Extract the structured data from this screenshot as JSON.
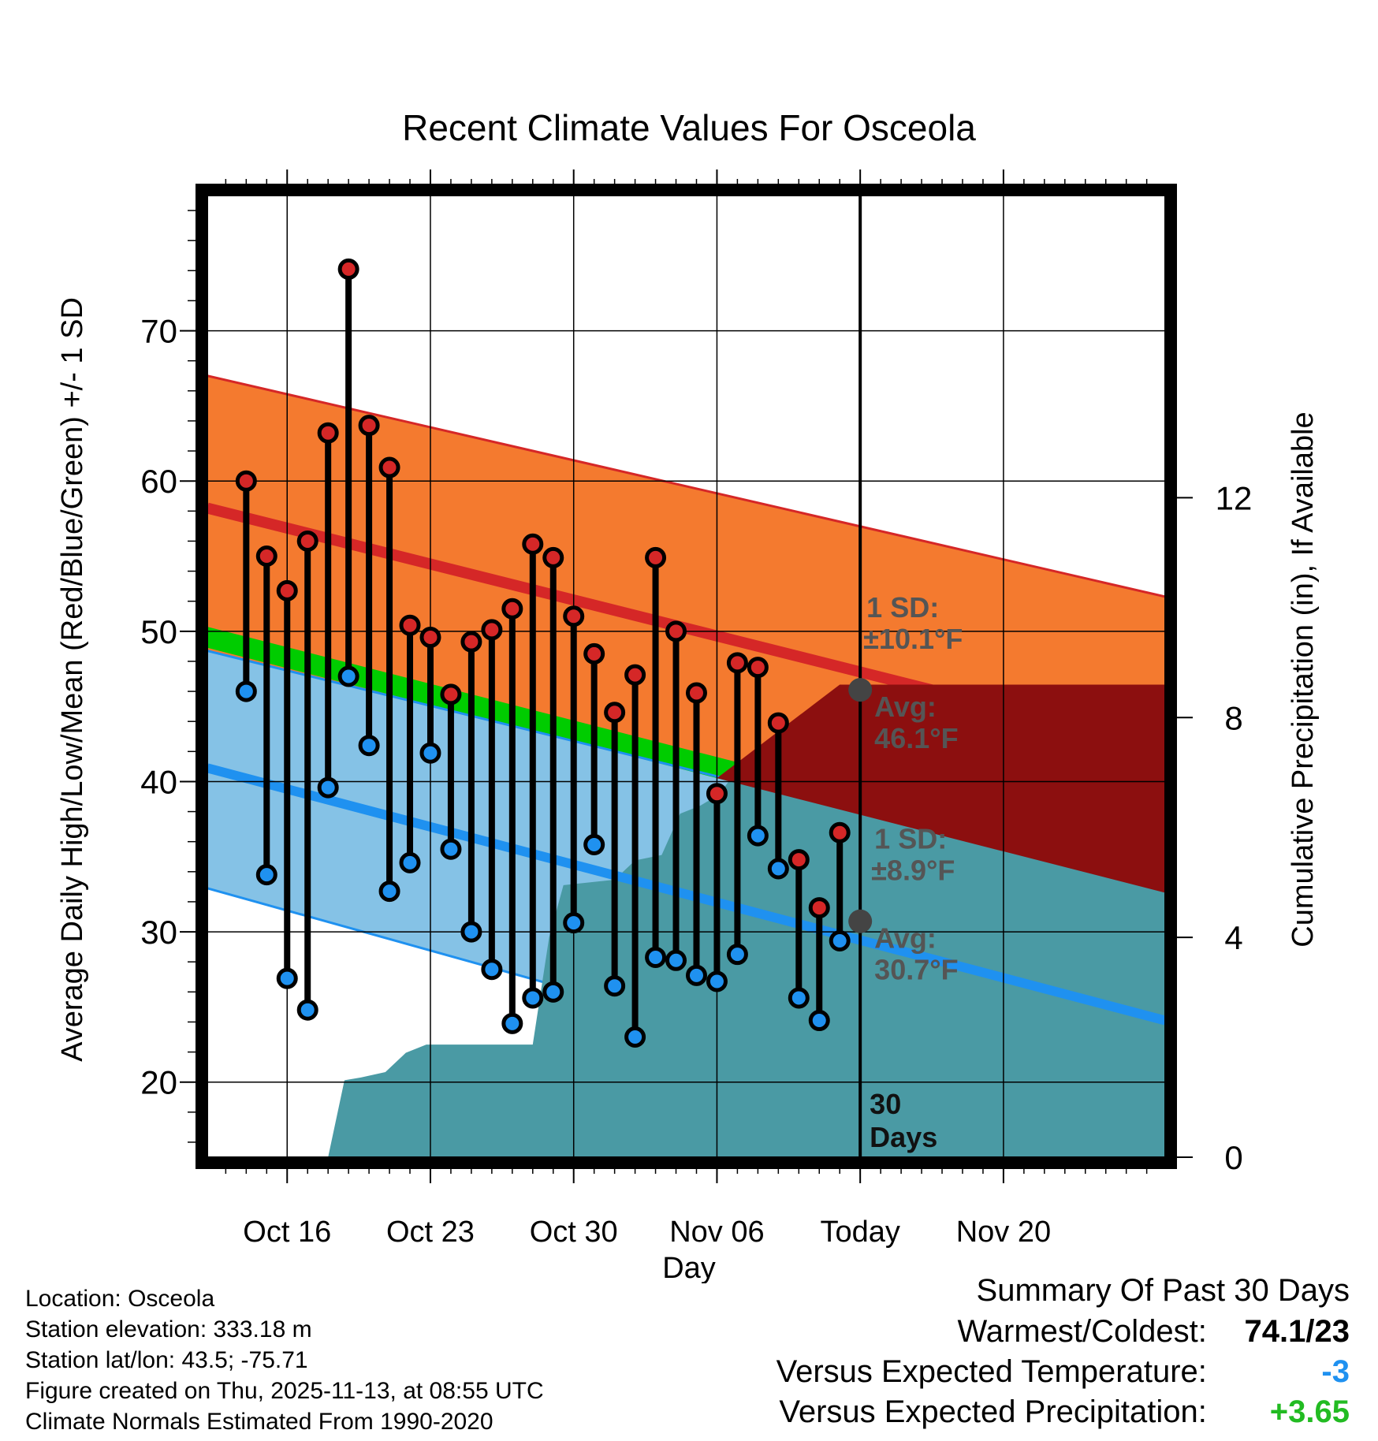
{
  "chart_data": {
    "type": "line",
    "title": "Recent Climate Values For Osceola",
    "xlabel": "Day",
    "ylabel": "Average Daily High/Low/Mean (Red/Blue/Green) +/- 1 SD",
    "y2label": "Cumulative Precipitation (in), If Available",
    "ylim": [
      15,
      79
    ],
    "y2lim": [
      0,
      17.5
    ],
    "xlim": [
      -1.9,
      44.9
    ],
    "x_tick_labels": [
      "Oct 16",
      "Oct 23",
      "Oct 30",
      "Nov 06",
      "Today",
      "Nov 20"
    ],
    "x_tick_days": [
      2,
      9,
      16,
      23,
      30,
      37
    ],
    "y_tick_labels": [
      "20",
      "30",
      "40",
      "50",
      "60",
      "70"
    ],
    "y_ticks": [
      20,
      30,
      40,
      50,
      60,
      70
    ],
    "y2_tick_labels": [
      "0",
      "4",
      "8",
      "12"
    ],
    "y2_ticks": [
      0,
      4,
      8,
      12
    ],
    "today_day": 30,
    "days_label": "30\nDays",
    "normals": {
      "high_mean": [
        58.2,
        42.2
      ],
      "high_upper": [
        67.0,
        52.3
      ],
      "low_mean": [
        40.9,
        24.1
      ],
      "low_upper": [
        48.7,
        33.0
      ],
      "low_lower": [
        32.9,
        15.1
      ],
      "mean_mean": [
        49.7,
        33.4
      ],
      "x_range": [
        -1.9,
        44.9
      ]
    },
    "daily": [
      {
        "day": 0,
        "high": 60.0,
        "low": 46.0
      },
      {
        "day": 1,
        "high": 55.0,
        "low": 33.8
      },
      {
        "day": 2,
        "high": 52.7,
        "low": 26.9
      },
      {
        "day": 3,
        "high": 56.0,
        "low": 24.8
      },
      {
        "day": 4,
        "high": 63.2,
        "low": 39.6
      },
      {
        "day": 5,
        "high": 74.1,
        "low": 47.0
      },
      {
        "day": 6,
        "high": 63.7,
        "low": 42.4
      },
      {
        "day": 7,
        "high": 60.9,
        "low": 32.7
      },
      {
        "day": 8,
        "high": 50.4,
        "low": 34.6
      },
      {
        "day": 9,
        "high": 49.6,
        "low": 41.9
      },
      {
        "day": 10,
        "high": 45.8,
        "low": 35.5
      },
      {
        "day": 11,
        "high": 49.3,
        "low": 30.0
      },
      {
        "day": 12,
        "high": 50.1,
        "low": 27.5
      },
      {
        "day": 13,
        "high": 51.5,
        "low": 23.9
      },
      {
        "day": 14,
        "high": 55.8,
        "low": 25.6
      },
      {
        "day": 15,
        "high": 54.9,
        "low": 26.0
      },
      {
        "day": 16,
        "high": 51.0,
        "low": 30.6
      },
      {
        "day": 17,
        "high": 48.5,
        "low": 35.8
      },
      {
        "day": 18,
        "high": 44.6,
        "low": 26.4
      },
      {
        "day": 19,
        "high": 47.1,
        "low": 23.0
      },
      {
        "day": 20,
        "high": 54.9,
        "low": 28.3
      },
      {
        "day": 21,
        "high": 50.0,
        "low": 28.1
      },
      {
        "day": 22,
        "high": 45.9,
        "low": 27.1
      },
      {
        "day": 23,
        "high": 39.2,
        "low": 26.7
      },
      {
        "day": 24,
        "high": 47.9,
        "low": 28.5
      },
      {
        "day": 25,
        "high": 47.6,
        "low": 36.4
      },
      {
        "day": 26,
        "high": 43.9,
        "low": 34.2
      },
      {
        "day": 27,
        "high": 34.8,
        "low": 25.6
      },
      {
        "day": 28,
        "high": 31.6,
        "low": 24.1
      },
      {
        "day": 29,
        "high": 36.6,
        "low": 29.4
      }
    ],
    "cumulative_precip": [
      {
        "day": 4,
        "value": 0
      },
      {
        "day": 4.8,
        "value": 1.4
      },
      {
        "day": 5.6,
        "value": 1.45
      },
      {
        "day": 6.8,
        "value": 1.55
      },
      {
        "day": 7.8,
        "value": 1.9
      },
      {
        "day": 8.8,
        "value": 2.05
      },
      {
        "day": 13,
        "value": 2.05
      },
      {
        "day": 14,
        "value": 2.05
      },
      {
        "day": 14.8,
        "value": 4.0
      },
      {
        "day": 15.5,
        "value": 4.95
      },
      {
        "day": 18,
        "value": 5.05
      },
      {
        "day": 19,
        "value": 5.4
      },
      {
        "day": 20.3,
        "value": 5.5
      },
      {
        "day": 21.2,
        "value": 6.25
      },
      {
        "day": 22.2,
        "value": 6.4
      },
      {
        "day": 23.1,
        "value": 6.6
      },
      {
        "day": 24.2,
        "value": 7.15
      },
      {
        "day": 25.3,
        "value": 7.4
      },
      {
        "day": 26.2,
        "value": 7.7
      },
      {
        "day": 27.3,
        "value": 7.85
      },
      {
        "day": 28.2,
        "value": 8.1
      },
      {
        "day": 29,
        "value": 8.6
      },
      {
        "day": 30,
        "value": 8.6
      },
      {
        "day": 44.9,
        "value": 8.6
      }
    ],
    "annotations": {
      "high_sd": "1 SD:",
      "high_sd_value": "±10.1°F",
      "high_avg": "Avg:",
      "high_avg_value": "46.1°F",
      "high_avg_num": 46.1,
      "low_sd": "1 SD:",
      "low_sd_value": "±8.9°F",
      "low_avg": "Avg:",
      "low_avg_value": "30.7°F",
      "low_avg_num": 30.7
    },
    "colors": {
      "high_band": "#f47a2f",
      "high_line": "#d52727",
      "low_band": "#85c2e6",
      "low_line": "#1f91f0",
      "mean_band": "#00cc00",
      "dark_band": "#8c0f0f",
      "precip": "#4a9aa4",
      "high_dot": "#d52727",
      "low_dot": "#1f91f0",
      "avg_dot": "#444444",
      "annotation": "#555555"
    }
  },
  "footer": {
    "location": "Location: Osceola",
    "elevation": "Station elevation: 333.18 m",
    "latlon": "Station lat/lon: 43.5; -75.71",
    "created": "Figure created on Thu, 2025-11-13, at 08:55 UTC",
    "normals": "Climate Normals Estimated From 1990-2020"
  },
  "summary": {
    "title": "Summary Of Past 30 Days",
    "warmest_label": "Warmest/Coldest:",
    "warmest_value": "74.1/23",
    "temp_label": "Versus Expected Temperature:",
    "temp_value": "-3",
    "temp_color": "#1f91f0",
    "precip_label": "Versus Expected Precipitation:",
    "precip_value": "+3.65",
    "precip_color": "#22bb22"
  }
}
